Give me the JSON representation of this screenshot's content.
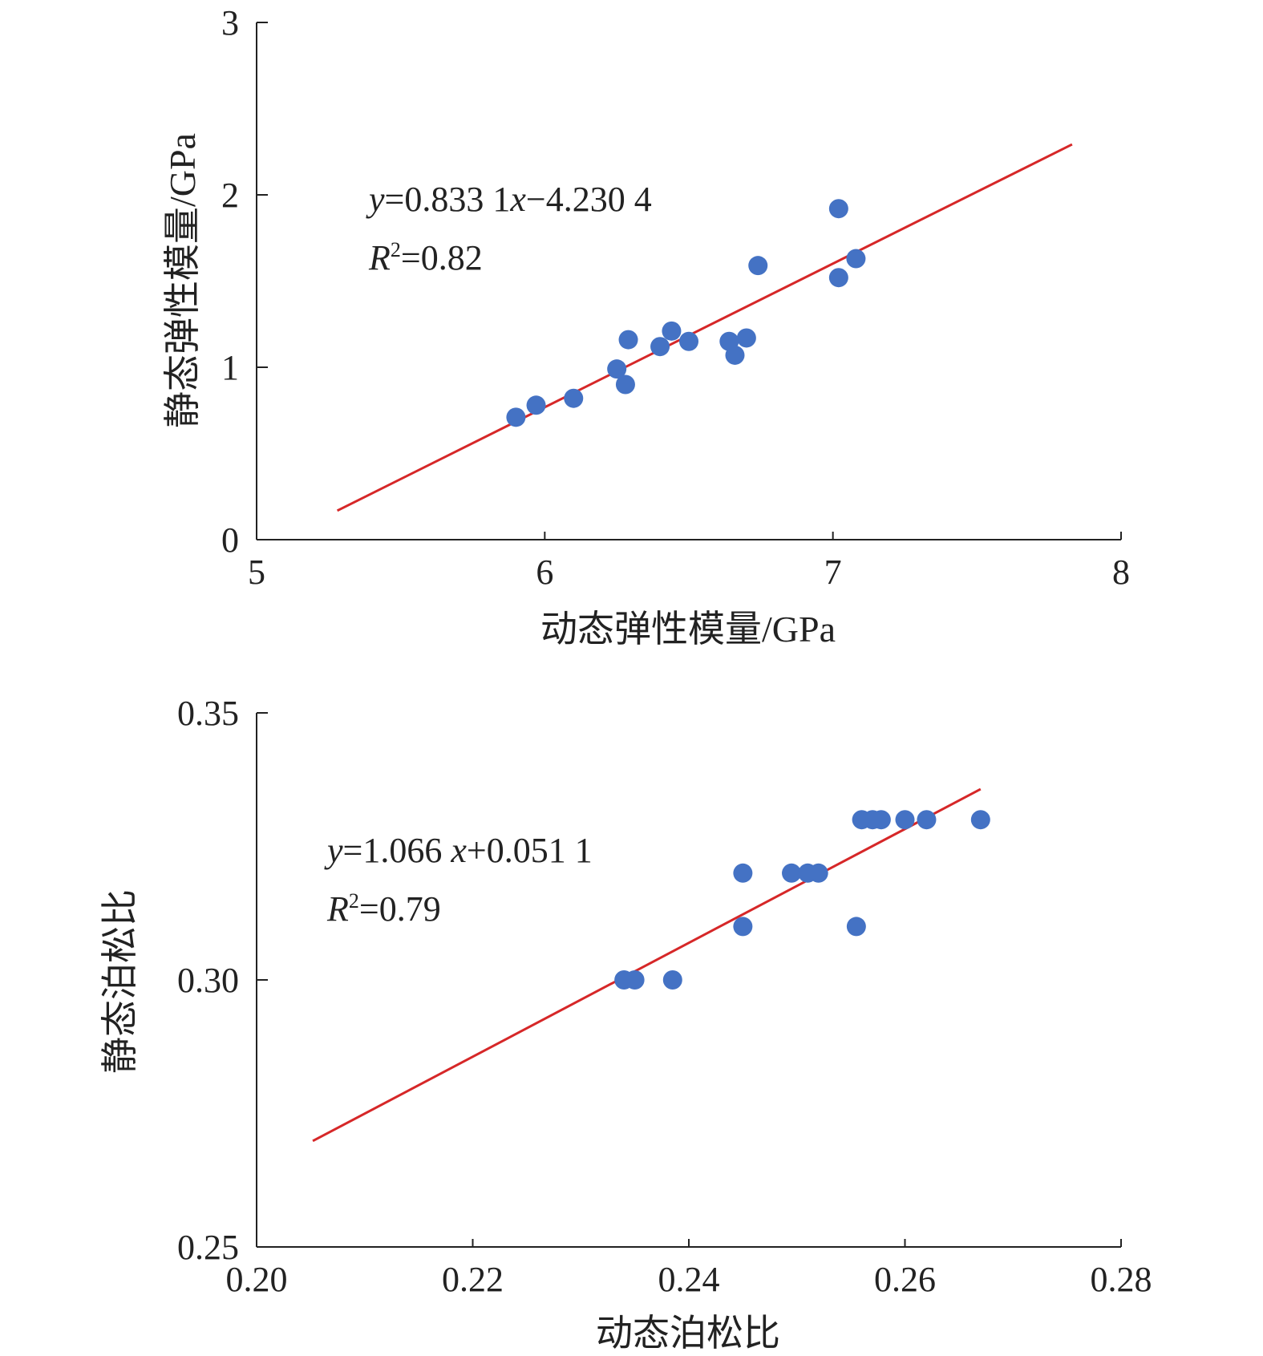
{
  "chart_data": [
    {
      "type": "scatter",
      "title": "",
      "xlabel": "动态弹性模量/GPa",
      "ylabel": "静态弹性模量/GPa",
      "xlim": [
        5,
        8
      ],
      "ylim": [
        0,
        3
      ],
      "x_ticks": [
        "5",
        "6",
        "7",
        "8"
      ],
      "y_ticks": [
        "0",
        "1",
        "2",
        "3"
      ],
      "points": [
        {
          "x": 5.9,
          "y": 0.71
        },
        {
          "x": 5.97,
          "y": 0.78
        },
        {
          "x": 6.1,
          "y": 0.82
        },
        {
          "x": 6.25,
          "y": 0.99
        },
        {
          "x": 6.28,
          "y": 0.9
        },
        {
          "x": 6.29,
          "y": 1.16
        },
        {
          "x": 6.4,
          "y": 1.12
        },
        {
          "x": 6.44,
          "y": 1.21
        },
        {
          "x": 6.5,
          "y": 1.15
        },
        {
          "x": 6.64,
          "y": 1.15
        },
        {
          "x": 6.66,
          "y": 1.07
        },
        {
          "x": 6.7,
          "y": 1.17
        },
        {
          "x": 6.74,
          "y": 1.59
        },
        {
          "x": 7.02,
          "y": 1.92
        },
        {
          "x": 7.02,
          "y": 1.52
        },
        {
          "x": 7.08,
          "y": 1.63
        }
      ],
      "fit_line": {
        "slope": 0.8331,
        "intercept": -4.2304,
        "x_range": [
          5.28,
          7.83
        ]
      },
      "annotations": {
        "eq_y": "y",
        "eq_mid": "=0.833 1",
        "eq_x": "x",
        "eq_rest": "−4.230 4",
        "r_letter": "R",
        "r_sup": "2",
        "r_value": "=0.82"
      },
      "point_color": "#4472c4",
      "line_color": "#d62728"
    },
    {
      "type": "scatter",
      "title": "",
      "xlabel": "动态泊松比",
      "ylabel": "静态泊松比",
      "xlim": [
        0.2,
        0.28
      ],
      "ylim": [
        0.25,
        0.35
      ],
      "x_ticks": [
        "0.20",
        "0.22",
        "0.24",
        "0.26",
        "0.28"
      ],
      "y_ticks": [
        "0.25",
        "0.30",
        "0.35"
      ],
      "points": [
        {
          "x": 0.234,
          "y": 0.3
        },
        {
          "x": 0.235,
          "y": 0.3
        },
        {
          "x": 0.2385,
          "y": 0.3
        },
        {
          "x": 0.245,
          "y": 0.32
        },
        {
          "x": 0.245,
          "y": 0.31
        },
        {
          "x": 0.2495,
          "y": 0.32
        },
        {
          "x": 0.251,
          "y": 0.32
        },
        {
          "x": 0.252,
          "y": 0.32
        },
        {
          "x": 0.2555,
          "y": 0.31
        },
        {
          "x": 0.256,
          "y": 0.33
        },
        {
          "x": 0.257,
          "y": 0.33
        },
        {
          "x": 0.2578,
          "y": 0.33
        },
        {
          "x": 0.26,
          "y": 0.33
        },
        {
          "x": 0.262,
          "y": 0.33
        },
        {
          "x": 0.267,
          "y": 0.33
        }
      ],
      "fit_line": {
        "slope": 1.066,
        "intercept": 0.0511,
        "x_range": [
          0.2052,
          0.267
        ]
      },
      "annotations": {
        "eq_y": "y",
        "eq_mid": "=1.066 ",
        "eq_x": "x",
        "eq_rest": "+0.051 1",
        "r_letter": "R",
        "r_sup": "2",
        "r_value": "=0.79"
      },
      "point_color": "#4472c4",
      "line_color": "#d62728"
    }
  ]
}
